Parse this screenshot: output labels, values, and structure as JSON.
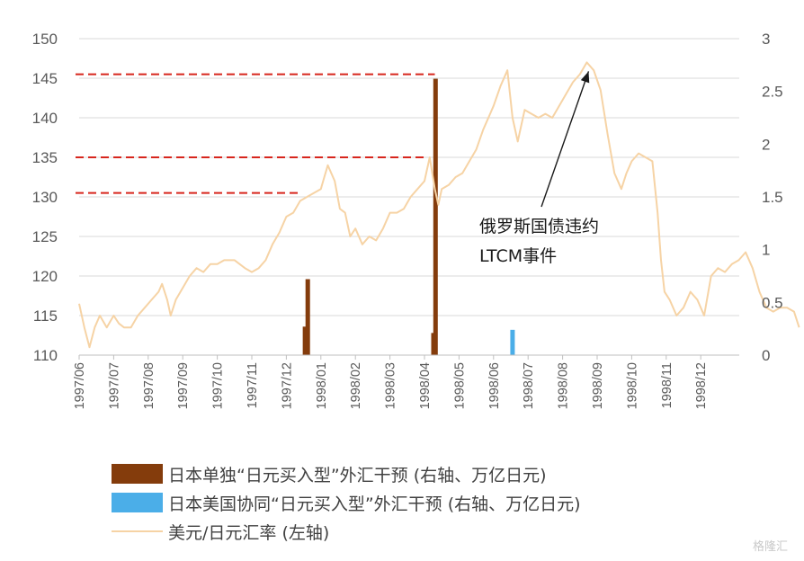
{
  "chart_data": {
    "type": "line+bar",
    "left_axis": {
      "ticks": [
        110,
        115,
        120,
        125,
        130,
        135,
        140,
        145,
        150
      ],
      "ylim": [
        110,
        150
      ]
    },
    "right_axis": {
      "ticks": [
        "0",
        "0.5",
        "1",
        "1.5",
        "2",
        "2.5",
        "3"
      ],
      "ylim": [
        0,
        3
      ]
    },
    "x_ticks": [
      "1997/06",
      "1997/07",
      "1997/08",
      "1997/09",
      "1997/10",
      "1997/11",
      "1997/12",
      "1998/01",
      "1998/02",
      "1998/03",
      "1998/04",
      "1998/05",
      "1998/06",
      "1998/07",
      "1998/08",
      "1998/09",
      "1998/10",
      "1998/11",
      "1998/12"
    ],
    "series": [
      {
        "name": "日本单独“日元买入型”外汇干预 (右轴、万亿日元)",
        "kind": "bar",
        "axis": "right",
        "color": "#843c0c",
        "points": [
          [
            6.54,
            0.27
          ],
          [
            6.62,
            0.72
          ],
          [
            10.26,
            0.21
          ],
          [
            10.32,
            2.62
          ]
        ]
      },
      {
        "name": "日本美国协同“日元买入型”外汇干预 (右轴、万亿日元)",
        "kind": "bar",
        "axis": "right",
        "color": "#4baee8",
        "points": [
          [
            12.55,
            0.24
          ]
        ]
      },
      {
        "name": "美元/日元汇率 (左轴)",
        "kind": "line",
        "axis": "left",
        "color": "#f6d3a5",
        "points": [
          [
            0,
            116.5
          ],
          [
            0.15,
            113.5
          ],
          [
            0.3,
            111
          ],
          [
            0.45,
            113.5
          ],
          [
            0.6,
            115
          ],
          [
            0.8,
            113.5
          ],
          [
            1,
            115
          ],
          [
            1.15,
            114
          ],
          [
            1.3,
            113.5
          ],
          [
            1.5,
            113.5
          ],
          [
            1.7,
            115
          ],
          [
            1.9,
            116
          ],
          [
            2.1,
            117
          ],
          [
            2.3,
            118
          ],
          [
            2.4,
            119
          ],
          [
            2.55,
            117
          ],
          [
            2.65,
            115
          ],
          [
            2.8,
            117
          ],
          [
            3,
            118.5
          ],
          [
            3.2,
            120
          ],
          [
            3.4,
            121
          ],
          [
            3.6,
            120.5
          ],
          [
            3.8,
            121.5
          ],
          [
            4,
            121.5
          ],
          [
            4.2,
            122
          ],
          [
            4.5,
            122
          ],
          [
            4.8,
            121
          ],
          [
            5,
            120.5
          ],
          [
            5.2,
            121
          ],
          [
            5.4,
            122
          ],
          [
            5.6,
            124
          ],
          [
            5.8,
            125.5
          ],
          [
            6,
            127.5
          ],
          [
            6.2,
            128
          ],
          [
            6.4,
            129.5
          ],
          [
            6.6,
            130
          ],
          [
            6.8,
            130.5
          ],
          [
            7,
            131
          ],
          [
            7.1,
            132.5
          ],
          [
            7.2,
            134
          ],
          [
            7.4,
            132
          ],
          [
            7.55,
            128.5
          ],
          [
            7.7,
            128
          ],
          [
            7.85,
            125
          ],
          [
            8,
            126
          ],
          [
            8.2,
            124
          ],
          [
            8.4,
            125
          ],
          [
            8.6,
            124.5
          ],
          [
            8.8,
            126
          ],
          [
            9,
            128
          ],
          [
            9.2,
            128
          ],
          [
            9.4,
            128.5
          ],
          [
            9.6,
            130
          ],
          [
            9.8,
            131
          ],
          [
            10,
            132
          ],
          [
            10.15,
            135
          ],
          [
            10.3,
            131
          ],
          [
            10.4,
            129
          ],
          [
            10.5,
            131
          ],
          [
            10.7,
            131.5
          ],
          [
            10.9,
            132.5
          ],
          [
            11.1,
            133
          ],
          [
            11.3,
            134.5
          ],
          [
            11.5,
            136
          ],
          [
            11.7,
            138.5
          ],
          [
            11.9,
            140.5
          ],
          [
            12,
            141.5
          ],
          [
            12.2,
            144
          ],
          [
            12.4,
            146
          ],
          [
            12.55,
            140
          ],
          [
            12.7,
            137
          ],
          [
            12.9,
            141
          ],
          [
            13.1,
            140.5
          ],
          [
            13.3,
            140
          ],
          [
            13.5,
            140.5
          ],
          [
            13.7,
            140
          ],
          [
            13.9,
            141.5
          ],
          [
            14.1,
            143
          ],
          [
            14.3,
            144.5
          ],
          [
            14.5,
            145.5
          ],
          [
            14.7,
            147
          ],
          [
            14.9,
            146
          ],
          [
            15.1,
            143.5
          ],
          [
            15.3,
            138
          ],
          [
            15.5,
            133
          ],
          [
            15.7,
            131
          ],
          [
            15.85,
            133
          ],
          [
            16,
            134.5
          ],
          [
            16.2,
            135.5
          ],
          [
            16.4,
            135
          ],
          [
            16.6,
            134.5
          ],
          [
            16.75,
            128
          ],
          [
            16.85,
            122
          ],
          [
            16.95,
            118
          ],
          [
            17.1,
            117
          ],
          [
            17.3,
            115
          ],
          [
            17.5,
            116
          ],
          [
            17.7,
            118
          ],
          [
            17.9,
            117
          ],
          [
            18.1,
            115
          ],
          [
            18.3,
            120
          ],
          [
            18.5,
            121
          ],
          [
            18.7,
            120.5
          ],
          [
            18.9,
            121.5
          ],
          [
            19.1,
            122
          ],
          [
            19.3,
            123
          ],
          [
            19.5,
            121
          ],
          [
            19.7,
            118
          ],
          [
            19.9,
            116
          ],
          [
            20.1,
            115.5
          ],
          [
            20.3,
            116
          ],
          [
            20.5,
            116
          ],
          [
            20.7,
            115.5
          ],
          [
            20.85,
            113.5
          ]
        ]
      }
    ],
    "reference_lines": [
      {
        "y": 145.5,
        "x_end": 10.3,
        "color": "#d7261d",
        "style": "dashed"
      },
      {
        "y": 135,
        "x_end": 10.0,
        "color": "#d7261d",
        "style": "dashed"
      },
      {
        "y": 130.5,
        "x_end": 6.45,
        "color": "#d7261d",
        "style": "dashed"
      }
    ],
    "annotation": {
      "lines": [
        "俄罗斯国债违约",
        "LTCM事件"
      ],
      "arrow_to": [
        14.7,
        147
      ]
    },
    "grid": "horizontal",
    "legend_position": "bottom"
  },
  "watermark": "格隆汇"
}
